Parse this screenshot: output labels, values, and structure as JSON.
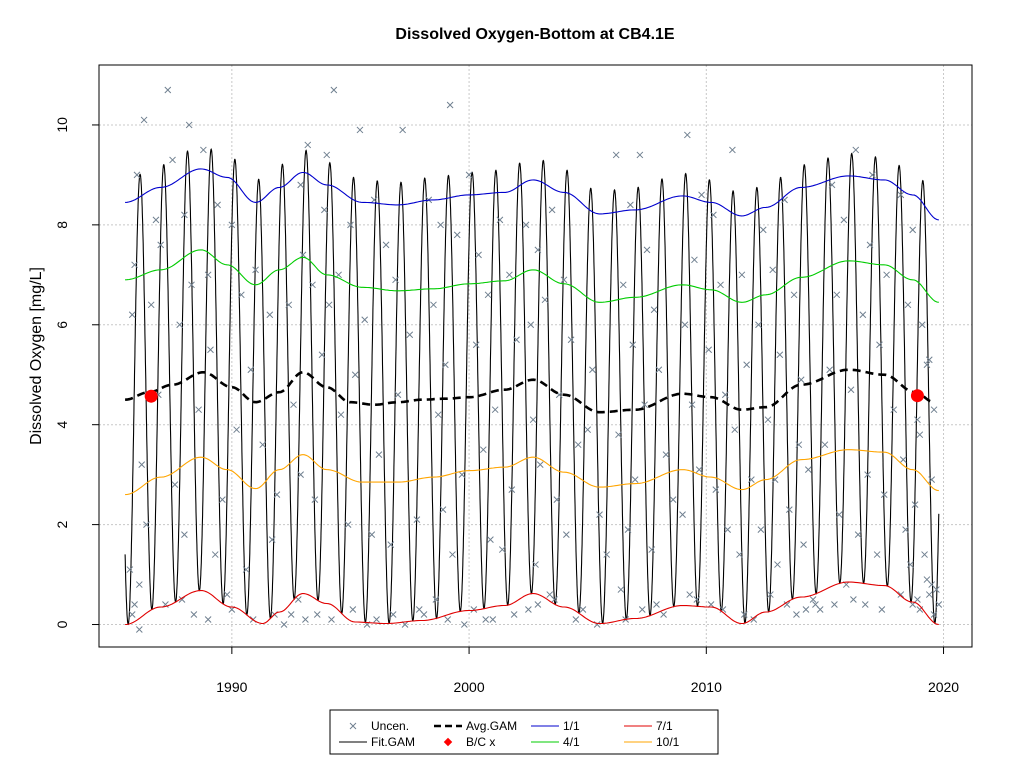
{
  "chart_data": {
    "type": "line",
    "title": "Dissolved Oxygen-Bottom at CB4.1E",
    "ylabel": "Dissolved Oxygen [mg/L]",
    "xlabel": "",
    "xlim": [
      1984.4,
      2021.2
    ],
    "ylim": [
      -0.45,
      11.2
    ],
    "grid": true,
    "x_ticks": [
      1990,
      2000,
      2010,
      2020
    ],
    "x_tick_labels": [
      "1990",
      "2000",
      "2010",
      "2020"
    ],
    "y_ticks": [
      0,
      2,
      4,
      6,
      8,
      10
    ],
    "y_tick_labels": [
      "0",
      "2",
      "4",
      "6",
      "8",
      "10"
    ],
    "fit_range": [
      1985.5,
      2019.8
    ],
    "series": [
      {
        "name": "1/1",
        "role": "seasonal",
        "color": "#0000CD",
        "x": [
          1985.5,
          1987,
          1988.7,
          1989.8,
          1991,
          1992,
          1993,
          1994,
          1995.5,
          1997,
          1998.5,
          2000,
          2001.5,
          2002.7,
          2004,
          2005.5,
          2007,
          2009,
          2010.2,
          2011.5,
          2012.5,
          2014,
          2016,
          2017.5,
          2018.7,
          2019.8
        ],
        "y": [
          8.45,
          8.75,
          9.12,
          8.95,
          8.45,
          8.75,
          9.05,
          8.8,
          8.45,
          8.4,
          8.5,
          8.6,
          8.65,
          8.9,
          8.65,
          8.22,
          8.3,
          8.58,
          8.45,
          8.18,
          8.35,
          8.75,
          8.98,
          8.9,
          8.6,
          8.1
        ]
      },
      {
        "name": "4/1",
        "role": "seasonal",
        "color": "#00CC00",
        "x": [
          1985.5,
          1987,
          1988.7,
          1989.8,
          1991,
          1992,
          1993,
          1994,
          1995.5,
          1997,
          1998.5,
          2000,
          2001.5,
          2002.7,
          2004,
          2005.5,
          2007,
          2009,
          2010.2,
          2011.5,
          2012.5,
          2014,
          2016,
          2017.5,
          2018.7,
          2019.8
        ],
        "y": [
          6.9,
          7.1,
          7.5,
          7.2,
          6.8,
          7.1,
          7.35,
          7.0,
          6.75,
          6.68,
          6.72,
          6.82,
          6.88,
          7.1,
          6.82,
          6.45,
          6.55,
          6.8,
          6.7,
          6.45,
          6.6,
          6.95,
          7.28,
          7.2,
          6.9,
          6.45
        ]
      },
      {
        "name": "10/1",
        "role": "seasonal",
        "color": "#FFA500",
        "x": [
          1985.5,
          1987,
          1988.7,
          1989.8,
          1991,
          1992,
          1993,
          1994,
          1995.5,
          1997,
          1998.5,
          2000,
          2001.5,
          2002.7,
          2004,
          2005.5,
          2007,
          2009,
          2010.2,
          2011.5,
          2012.5,
          2014,
          2016,
          2017.5,
          2018.7,
          2019.8
        ],
        "y": [
          2.6,
          2.95,
          3.35,
          3.1,
          2.72,
          3.1,
          3.4,
          3.1,
          2.85,
          2.85,
          2.95,
          3.08,
          3.15,
          3.35,
          3.05,
          2.75,
          2.82,
          3.1,
          2.95,
          2.7,
          2.9,
          3.3,
          3.5,
          3.45,
          3.1,
          2.68
        ]
      },
      {
        "name": "7/1",
        "role": "seasonal",
        "color": "#E00000",
        "x": [
          1985.5,
          1987,
          1988.7,
          1990,
          1991.3,
          1992,
          1993,
          1994,
          1995.2,
          1996.5,
          1998,
          2000,
          2001.5,
          2002.7,
          2004,
          2005.5,
          2007,
          2009,
          2010.2,
          2011.5,
          2012.5,
          2014,
          2016,
          2017.5,
          2018.7,
          2019.8
        ],
        "y": [
          0.0,
          0.35,
          0.68,
          0.35,
          0.02,
          0.25,
          0.62,
          0.42,
          0.05,
          0.02,
          0.08,
          0.28,
          0.38,
          0.62,
          0.35,
          0.02,
          0.12,
          0.38,
          0.35,
          0.02,
          0.25,
          0.55,
          0.85,
          0.78,
          0.45,
          0.0
        ]
      },
      {
        "name": "Avg.GAM",
        "role": "average",
        "color": "#000000",
        "x": [
          1985.5,
          1986.5,
          1987.5,
          1988.8,
          1990,
          1991,
          1992,
          1993,
          1994,
          1995,
          1996,
          1997,
          1998,
          1999,
          2000,
          2001.5,
          2002.7,
          2004,
          2005.5,
          2007,
          2009,
          2010.2,
          2011.5,
          2012.5,
          2014,
          2016,
          2017.5,
          2018.8,
          2019.6
        ],
        "y": [
          4.5,
          4.65,
          4.8,
          5.05,
          4.75,
          4.45,
          4.65,
          5.05,
          4.75,
          4.45,
          4.4,
          4.45,
          4.5,
          4.52,
          4.55,
          4.7,
          4.9,
          4.6,
          4.25,
          4.3,
          4.62,
          4.55,
          4.3,
          4.35,
          4.8,
          5.1,
          5.0,
          4.65,
          4.45
        ]
      }
    ],
    "fit_gam": {
      "name": "Fit.GAM",
      "color": "#000000",
      "phase": 0.6,
      "amplitude_scale": 1.0
    },
    "bc_points": [
      {
        "x": 1986.6,
        "y": 4.57
      },
      {
        "x": 2018.9,
        "y": 4.58
      }
    ],
    "uncensored_points": [
      [
        1986.3,
        10.1
      ],
      [
        1987.3,
        10.7
      ],
      [
        1988.2,
        10.0
      ],
      [
        1988.8,
        9.5
      ],
      [
        1986.0,
        9.0
      ],
      [
        1987.5,
        9.3
      ],
      [
        1989.4,
        8.4
      ],
      [
        1986.8,
        8.1
      ],
      [
        1988.0,
        8.2
      ],
      [
        1990.0,
        8.0
      ],
      [
        1985.9,
        7.2
      ],
      [
        1987.0,
        7.6
      ],
      [
        1989.0,
        7.0
      ],
      [
        1991.0,
        7.1
      ],
      [
        1986.6,
        6.4
      ],
      [
        1988.3,
        6.8
      ],
      [
        1990.4,
        6.6
      ],
      [
        1985.8,
        6.2
      ],
      [
        1987.8,
        6.0
      ],
      [
        1991.6,
        6.2
      ],
      [
        1989.1,
        5.5
      ],
      [
        1990.8,
        5.1
      ],
      [
        1986.9,
        4.6
      ],
      [
        1988.6,
        4.3
      ],
      [
        1990.2,
        3.9
      ],
      [
        1991.3,
        3.6
      ],
      [
        1986.2,
        3.2
      ],
      [
        1987.6,
        2.8
      ],
      [
        1989.6,
        2.5
      ],
      [
        1991.9,
        2.6
      ],
      [
        1986.4,
        2.0
      ],
      [
        1988.0,
        1.8
      ],
      [
        1989.3,
        1.4
      ],
      [
        1990.6,
        1.1
      ],
      [
        1991.7,
        1.7
      ],
      [
        1986.1,
        0.8
      ],
      [
        1987.2,
        0.4
      ],
      [
        1988.4,
        0.2
      ],
      [
        1989.0,
        0.1
      ],
      [
        1990.0,
        0.3
      ],
      [
        1990.9,
        0.1
      ],
      [
        1991.8,
        0.2
      ],
      [
        1985.8,
        0.2
      ],
      [
        1987.9,
        0.5
      ],
      [
        1989.8,
        0.6
      ],
      [
        1985.7,
        1.1
      ],
      [
        1985.9,
        0.4
      ],
      [
        1986.1,
        -0.1
      ],
      [
        1992.2,
        0.0
      ],
      [
        1992.5,
        0.2
      ],
      [
        1993.2,
        9.6
      ],
      [
        1994.3,
        10.7
      ],
      [
        1995.4,
        9.9
      ],
      [
        1994.0,
        9.4
      ],
      [
        1992.9,
        8.8
      ],
      [
        1993.9,
        8.3
      ],
      [
        1995.0,
        8.0
      ],
      [
        1996.0,
        8.5
      ],
      [
        1997.2,
        9.9
      ],
      [
        1996.5,
        7.6
      ],
      [
        1993.0,
        7.4
      ],
      [
        1994.5,
        7.0
      ],
      [
        1992.4,
        6.4
      ],
      [
        1994.1,
        6.4
      ],
      [
        1993.4,
        6.8
      ],
      [
        1995.6,
        6.1
      ],
      [
        1996.9,
        6.9
      ],
      [
        1993.8,
        5.4
      ],
      [
        1995.2,
        5.0
      ],
      [
        1997.5,
        5.8
      ],
      [
        1992.6,
        4.4
      ],
      [
        1994.6,
        4.2
      ],
      [
        1996.2,
        3.4
      ],
      [
        1997.0,
        4.6
      ],
      [
        1993.5,
        2.5
      ],
      [
        1994.9,
        2.0
      ],
      [
        1996.7,
        1.6
      ],
      [
        1997.8,
        2.1
      ],
      [
        1992.9,
        3.0
      ],
      [
        1995.9,
        1.8
      ],
      [
        1993.6,
        0.2
      ],
      [
        1994.2,
        0.1
      ],
      [
        1995.1,
        0.3
      ],
      [
        1996.1,
        0.1
      ],
      [
        1997.3,
        0.0
      ],
      [
        1993.1,
        0.1
      ],
      [
        1996.8,
        0.2
      ],
      [
        1992.8,
        0.5
      ],
      [
        1995.7,
        0.0
      ],
      [
        1997.9,
        0.3
      ],
      [
        1998.3,
        8.5
      ],
      [
        1999.2,
        10.4
      ],
      [
        2000.0,
        9.0
      ],
      [
        1998.8,
        8.0
      ],
      [
        2001.3,
        8.1
      ],
      [
        2000.4,
        7.4
      ],
      [
        1999.5,
        7.8
      ],
      [
        1998.5,
        6.4
      ],
      [
        2000.8,
        6.6
      ],
      [
        2001.7,
        7.0
      ],
      [
        1999.0,
        5.2
      ],
      [
        2000.3,
        5.6
      ],
      [
        2002.0,
        5.7
      ],
      [
        1998.7,
        4.2
      ],
      [
        2001.1,
        4.3
      ],
      [
        2000.6,
        3.5
      ],
      [
        1999.7,
        3.0
      ],
      [
        2001.8,
        2.7
      ],
      [
        1998.9,
        2.3
      ],
      [
        2000.9,
        1.7
      ],
      [
        1999.3,
        1.4
      ],
      [
        2001.4,
        1.5
      ],
      [
        1998.1,
        0.2
      ],
      [
        1999.1,
        0.1
      ],
      [
        2000.2,
        0.3
      ],
      [
        2001.0,
        0.1
      ],
      [
        2001.9,
        0.2
      ],
      [
        1998.6,
        0.5
      ],
      [
        1999.8,
        0.0
      ],
      [
        2000.7,
        0.1
      ],
      [
        2002.4,
        8.0
      ],
      [
        2003.5,
        8.3
      ],
      [
        2002.9,
        7.5
      ],
      [
        2004.0,
        6.9
      ],
      [
        2003.2,
        6.5
      ],
      [
        2002.6,
        6.0
      ],
      [
        2004.3,
        5.7
      ],
      [
        2003.8,
        4.6
      ],
      [
        2005.2,
        5.1
      ],
      [
        2002.7,
        4.1
      ],
      [
        2004.6,
        3.6
      ],
      [
        2003.0,
        3.2
      ],
      [
        2005.0,
        3.9
      ],
      [
        2003.7,
        2.5
      ],
      [
        2005.5,
        2.2
      ],
      [
        2004.1,
        1.8
      ],
      [
        2002.8,
        1.2
      ],
      [
        2005.8,
        1.4
      ],
      [
        2003.4,
        0.6
      ],
      [
        2002.5,
        0.3
      ],
      [
        2003.6,
        0.5
      ],
      [
        2004.5,
        0.1
      ],
      [
        2005.4,
        0.0
      ],
      [
        2002.9,
        0.4
      ],
      [
        2004.8,
        0.3
      ],
      [
        2006.2,
        9.4
      ],
      [
        2007.2,
        9.4
      ],
      [
        2006.8,
        8.4
      ],
      [
        2007.5,
        7.5
      ],
      [
        2006.5,
        6.8
      ],
      [
        2007.8,
        6.3
      ],
      [
        2006.9,
        5.6
      ],
      [
        2008.0,
        5.1
      ],
      [
        2007.4,
        4.4
      ],
      [
        2006.3,
        3.8
      ],
      [
        2008.3,
        3.4
      ],
      [
        2007.0,
        2.9
      ],
      [
        2008.6,
        2.5
      ],
      [
        2006.7,
        1.9
      ],
      [
        2007.7,
        1.5
      ],
      [
        2006.4,
        0.7
      ],
      [
        2007.3,
        0.3
      ],
      [
        2008.2,
        0.2
      ],
      [
        2006.6,
        0.1
      ],
      [
        2007.9,
        0.4
      ],
      [
        2009.2,
        9.8
      ],
      [
        2010.3,
        8.2
      ],
      [
        2009.8,
        8.6
      ],
      [
        2011.1,
        9.5
      ],
      [
        2009.5,
        7.3
      ],
      [
        2010.6,
        6.8
      ],
      [
        2011.5,
        7.0
      ],
      [
        2009.1,
        6.0
      ],
      [
        2010.1,
        5.5
      ],
      [
        2011.7,
        5.2
      ],
      [
        2009.4,
        4.4
      ],
      [
        2010.8,
        4.6
      ],
      [
        2011.2,
        3.9
      ],
      [
        2009.7,
        3.1
      ],
      [
        2010.4,
        2.7
      ],
      [
        2011.9,
        2.9
      ],
      [
        2009.0,
        2.2
      ],
      [
        2010.9,
        1.9
      ],
      [
        2011.4,
        1.4
      ],
      [
        2009.3,
        0.6
      ],
      [
        2010.2,
        0.4
      ],
      [
        2010.7,
        0.3
      ],
      [
        2011.6,
        0.2
      ],
      [
        2009.6,
        0.5
      ],
      [
        2012.0,
        0.1
      ],
      [
        2012.4,
        7.9
      ],
      [
        2013.3,
        8.5
      ],
      [
        2012.8,
        7.1
      ],
      [
        2013.7,
        6.6
      ],
      [
        2012.2,
        6.0
      ],
      [
        2013.1,
        5.4
      ],
      [
        2014.0,
        4.9
      ],
      [
        2012.6,
        4.1
      ],
      [
        2013.9,
        3.6
      ],
      [
        2012.9,
        2.9
      ],
      [
        2014.3,
        3.1
      ],
      [
        2013.5,
        2.3
      ],
      [
        2012.3,
        1.9
      ],
      [
        2014.1,
        1.6
      ],
      [
        2013.0,
        1.2
      ],
      [
        2012.7,
        0.6
      ],
      [
        2013.4,
        0.4
      ],
      [
        2014.2,
        0.3
      ],
      [
        2013.8,
        0.2
      ],
      [
        2014.5,
        0.5
      ],
      [
        2015.3,
        8.8
      ],
      [
        2016.3,
        9.5
      ],
      [
        2017.0,
        9.0
      ],
      [
        2015.8,
        8.1
      ],
      [
        2016.9,
        7.6
      ],
      [
        2017.6,
        7.0
      ],
      [
        2015.5,
        6.6
      ],
      [
        2016.6,
        6.2
      ],
      [
        2017.3,
        5.6
      ],
      [
        2015.2,
        5.1
      ],
      [
        2016.1,
        4.7
      ],
      [
        2017.9,
        4.3
      ],
      [
        2015.0,
        3.6
      ],
      [
        2016.8,
        3.0
      ],
      [
        2017.5,
        2.6
      ],
      [
        2015.6,
        2.2
      ],
      [
        2016.4,
        1.8
      ],
      [
        2017.2,
        1.4
      ],
      [
        2015.9,
        0.8
      ],
      [
        2016.2,
        0.5
      ],
      [
        2016.7,
        0.4
      ],
      [
        2017.4,
        0.3
      ],
      [
        2015.4,
        0.4
      ],
      [
        2014.8,
        0.3
      ],
      [
        2014.6,
        0.4
      ],
      [
        2018.2,
        8.6
      ],
      [
        2018.7,
        7.9
      ],
      [
        2019.1,
        6.0
      ],
      [
        2018.5,
        6.4
      ],
      [
        2019.4,
        5.3
      ],
      [
        2019.3,
        5.2
      ],
      [
        2018.9,
        4.1
      ],
      [
        2019.6,
        4.3
      ],
      [
        2018.3,
        3.3
      ],
      [
        2019.0,
        3.8
      ],
      [
        2018.8,
        2.4
      ],
      [
        2019.5,
        2.9
      ],
      [
        2018.4,
        1.9
      ],
      [
        2019.2,
        1.4
      ],
      [
        2018.6,
        1.2
      ],
      [
        2019.4,
        0.6
      ],
      [
        2019.7,
        0.7
      ],
      [
        2018.9,
        0.5
      ],
      [
        2019.6,
        0.2
      ],
      [
        2019.8,
        0.4
      ],
      [
        2018.2,
        0.6
      ],
      [
        2019.0,
        0.3
      ],
      [
        2019.5,
        0.8
      ],
      [
        2018.7,
        0.4
      ],
      [
        2019.3,
        0.9
      ]
    ],
    "legend": {
      "placement": "bottom-center",
      "entries": [
        {
          "label": "Uncen.",
          "symbol": "x",
          "color": "#708090"
        },
        {
          "label": "Fit.GAM",
          "symbol": "line",
          "color": "#000000"
        },
        {
          "label": "Avg.GAM",
          "symbol": "dash",
          "color": "#000000"
        },
        {
          "label": "B/C x",
          "symbol": "dot",
          "color": "#FF0000"
        },
        {
          "label": "1/1",
          "symbol": "line",
          "color": "#0000CD"
        },
        {
          "label": "4/1",
          "symbol": "line",
          "color": "#00CC00"
        },
        {
          "label": "7/1",
          "symbol": "line",
          "color": "#E00000"
        },
        {
          "label": "10/1",
          "symbol": "line",
          "color": "#FFA500"
        }
      ]
    }
  }
}
